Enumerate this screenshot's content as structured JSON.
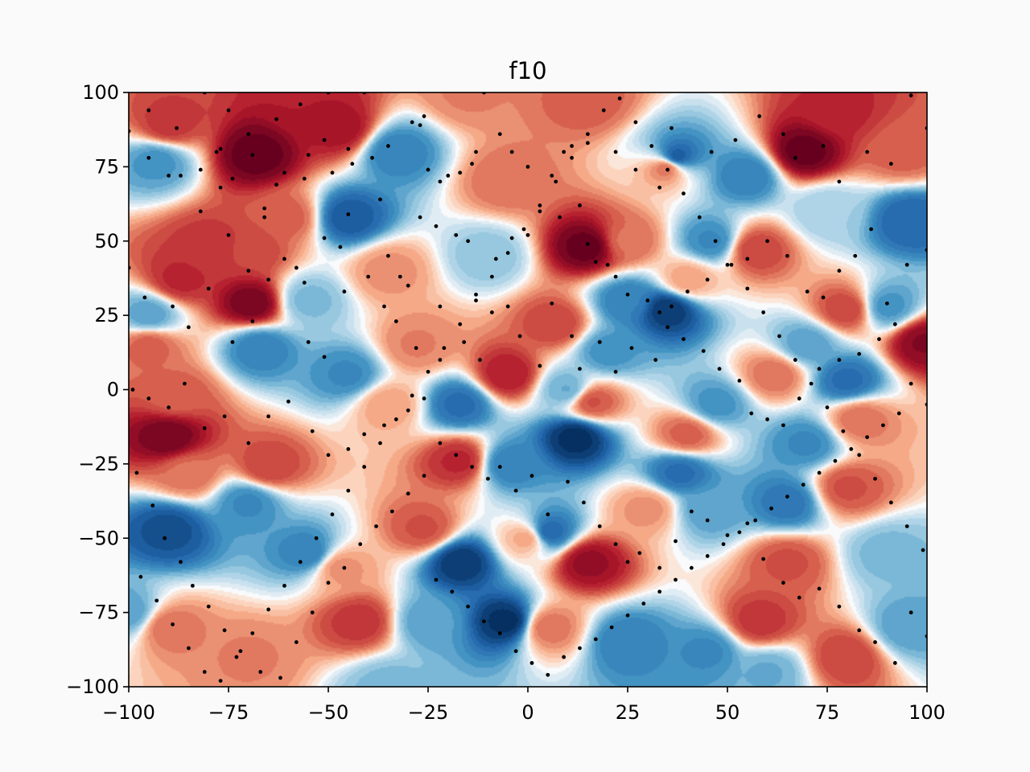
{
  "chart_data": {
    "type": "contour_scatter",
    "title": "f10",
    "xlabel": "",
    "ylabel": "",
    "xlim": [
      -100,
      100
    ],
    "ylim": [
      -100,
      100
    ],
    "x_ticks": [
      -100,
      -75,
      -50,
      -25,
      0,
      25,
      50,
      75,
      100
    ],
    "y_ticks": [
      -100,
      -75,
      -50,
      -25,
      0,
      25,
      50,
      75,
      100
    ],
    "x_tick_labels": [
      "−100",
      "−75",
      "−50",
      "−25",
      "0",
      "25",
      "50",
      "75",
      "100"
    ],
    "y_tick_labels": [
      "−100",
      "−75",
      "−50",
      "−25",
      "0",
      "25",
      "50",
      "75",
      "100"
    ],
    "grid": false,
    "colormap": "RdBu_r",
    "colors": {
      "low": "#08306b",
      "mid": "#f7f7f7",
      "high": "#67001f",
      "marker": "#000000",
      "background": "#fafafa"
    },
    "extrema": [
      {
        "x": -68,
        "y": 79,
        "v": 1.0
      },
      {
        "x": 69,
        "y": 80,
        "v": 1.0
      },
      {
        "x": 15,
        "y": 48,
        "v": 1.0
      },
      {
        "x": -69,
        "y": 29,
        "v": 0.95
      },
      {
        "x": -90,
        "y": -16,
        "v": 0.95
      },
      {
        "x": 99,
        "y": 16,
        "v": 0.9
      },
      {
        "x": 15,
        "y": -58,
        "v": 0.85
      },
      {
        "x": -47,
        "y": 88,
        "v": 0.8
      },
      {
        "x": -55,
        "y": 96,
        "v": 0.75
      },
      {
        "x": -90,
        "y": 89,
        "v": 0.65
      },
      {
        "x": -80,
        "y": 48,
        "v": 0.65
      },
      {
        "x": -87,
        "y": 37,
        "v": 0.7
      },
      {
        "x": -70,
        "y": 47,
        "v": 0.6
      },
      {
        "x": -60,
        "y": 58,
        "v": 0.5
      },
      {
        "x": -95,
        "y": 15,
        "v": 0.5
      },
      {
        "x": -88,
        "y": -2,
        "v": 0.5
      },
      {
        "x": -85,
        "y": -28,
        "v": 0.45
      },
      {
        "x": -65,
        "y": -26,
        "v": 0.6
      },
      {
        "x": -47,
        "y": -60,
        "v": 0.35
      },
      {
        "x": -26,
        "y": -47,
        "v": 0.55
      },
      {
        "x": -42,
        "y": -78,
        "v": 0.65
      },
      {
        "x": -90,
        "y": -80,
        "v": 0.45
      },
      {
        "x": -5,
        "y": 5,
        "v": 0.75
      },
      {
        "x": -17,
        "y": -24,
        "v": 0.7
      },
      {
        "x": 7,
        "y": 22,
        "v": 0.6
      },
      {
        "x": 16,
        "y": -4,
        "v": 0.55
      },
      {
        "x": 57,
        "y": 47,
        "v": 0.6
      },
      {
        "x": 80,
        "y": 27,
        "v": 0.6
      },
      {
        "x": 78,
        "y": 94,
        "v": 0.7
      },
      {
        "x": 94,
        "y": 80,
        "v": 0.5
      },
      {
        "x": 62,
        "y": 5,
        "v": 0.45
      },
      {
        "x": 83,
        "y": -10,
        "v": 0.45
      },
      {
        "x": 80,
        "y": -33,
        "v": 0.55
      },
      {
        "x": 65,
        "y": -58,
        "v": 0.55
      },
      {
        "x": 58,
        "y": -78,
        "v": 0.65
      },
      {
        "x": 80,
        "y": -90,
        "v": 0.6
      },
      {
        "x": 5,
        "y": -80,
        "v": 0.45
      },
      {
        "x": 35,
        "y": 75,
        "v": 0.5
      },
      {
        "x": 25,
        "y": 50,
        "v": 0.45
      },
      {
        "x": -35,
        "y": 40,
        "v": 0.35
      },
      {
        "x": -28,
        "y": 15,
        "v": 0.4
      },
      {
        "x": -5,
        "y": 70,
        "v": 0.45
      },
      {
        "x": -15,
        "y": 100,
        "v": 0.4
      },
      {
        "x": 15,
        "y": 97,
        "v": 0.5
      },
      {
        "x": 30,
        "y": -40,
        "v": 0.35
      },
      {
        "x": 40,
        "y": -15,
        "v": 0.5
      },
      {
        "x": 40,
        "y": 37,
        "v": 0.3
      },
      {
        "x": -70,
        "y": -90,
        "v": 0.4
      },
      {
        "x": -35,
        "y": -5,
        "v": 0.3
      },
      {
        "x": 0,
        "y": -50,
        "v": 0.3
      },
      {
        "x": -45,
        "y": 58,
        "v": -0.8
      },
      {
        "x": -33,
        "y": 80,
        "v": -0.6
      },
      {
        "x": -93,
        "y": 77,
        "v": -0.5
      },
      {
        "x": 37,
        "y": 78,
        "v": -0.85
      },
      {
        "x": 55,
        "y": 72,
        "v": -0.6
      },
      {
        "x": 96,
        "y": 57,
        "v": -0.75
      },
      {
        "x": 46,
        "y": 50,
        "v": -0.55
      },
      {
        "x": 35,
        "y": 27,
        "v": -0.95
      },
      {
        "x": 25,
        "y": 30,
        "v": -0.6
      },
      {
        "x": 20,
        "y": 13,
        "v": -0.5
      },
      {
        "x": 90,
        "y": 28,
        "v": -0.5
      },
      {
        "x": 70,
        "y": 15,
        "v": -0.45
      },
      {
        "x": -67,
        "y": 14,
        "v": -0.6
      },
      {
        "x": -45,
        "y": 5,
        "v": -0.55
      },
      {
        "x": -95,
        "y": 25,
        "v": -0.45
      },
      {
        "x": -17,
        "y": -5,
        "v": -0.7
      },
      {
        "x": 12,
        "y": -16,
        "v": -1.0
      },
      {
        "x": -5,
        "y": -25,
        "v": -0.6
      },
      {
        "x": 5,
        "y": -48,
        "v": -0.75
      },
      {
        "x": 80,
        "y": 3,
        "v": -0.7
      },
      {
        "x": 70,
        "y": -18,
        "v": -0.55
      },
      {
        "x": 47,
        "y": -5,
        "v": -0.5
      },
      {
        "x": 65,
        "y": -38,
        "v": -0.65
      },
      {
        "x": 45,
        "y": -40,
        "v": -0.45
      },
      {
        "x": 38,
        "y": -28,
        "v": -0.7
      },
      {
        "x": 90,
        "y": -55,
        "v": -0.35
      },
      {
        "x": -90,
        "y": -47,
        "v": -0.85
      },
      {
        "x": -70,
        "y": -38,
        "v": -0.55
      },
      {
        "x": -55,
        "y": -55,
        "v": -0.6
      },
      {
        "x": -17,
        "y": -58,
        "v": -0.95
      },
      {
        "x": -5,
        "y": -78,
        "v": -1.0
      },
      {
        "x": 25,
        "y": -85,
        "v": -0.6
      },
      {
        "x": 45,
        "y": -88,
        "v": -0.55
      },
      {
        "x": -25,
        "y": -78,
        "v": -0.45
      },
      {
        "x": -35,
        "y": -100,
        "v": -0.35
      },
      {
        "x": -100,
        "y": -75,
        "v": -0.45
      },
      {
        "x": 95,
        "y": -80,
        "v": -0.45
      },
      {
        "x": -55,
        "y": 30,
        "v": -0.35
      },
      {
        "x": 10,
        "y": 0,
        "v": -0.4
      },
      {
        "x": -10,
        "y": 45,
        "v": -0.3
      },
      {
        "x": 75,
        "y": 60,
        "v": -0.25
      },
      {
        "x": 60,
        "y": -95,
        "v": -0.4
      }
    ],
    "scatter_points": [
      [
        -100,
        87
      ],
      [
        -95,
        94
      ],
      [
        -88,
        88
      ],
      [
        -81,
        100
      ],
      [
        -75,
        94
      ],
      [
        -77,
        81
      ],
      [
        -70,
        86
      ],
      [
        -69,
        79
      ],
      [
        -63,
        91
      ],
      [
        -57,
        96
      ],
      [
        -55,
        79
      ],
      [
        -51,
        84
      ],
      [
        -50,
        100
      ],
      [
        -45,
        81
      ],
      [
        -41,
        100
      ],
      [
        -95,
        78
      ],
      [
        -87,
        72
      ],
      [
        -82,
        74
      ],
      [
        -78,
        80
      ],
      [
        -77,
        68
      ],
      [
        -74,
        71
      ],
      [
        -66,
        61
      ],
      [
        -63,
        69
      ],
      [
        -61,
        73
      ],
      [
        -56,
        71
      ],
      [
        -49,
        73
      ],
      [
        -44,
        76
      ],
      [
        -39,
        78
      ],
      [
        -35,
        82
      ],
      [
        -29,
        90
      ],
      [
        -27,
        89
      ],
      [
        -26,
        92
      ],
      [
        -25,
        74
      ],
      [
        -22,
        70
      ],
      [
        -20,
        72
      ],
      [
        -17,
        73
      ],
      [
        -14,
        76
      ],
      [
        -13,
        80
      ],
      [
        -11,
        100
      ],
      [
        -7,
        86
      ],
      [
        -4,
        80
      ],
      [
        0,
        75
      ],
      [
        6,
        72
      ],
      [
        9,
        80
      ],
      [
        11,
        82
      ],
      [
        15,
        83
      ],
      [
        22,
        80
      ],
      [
        27,
        74
      ],
      [
        33,
        68
      ],
      [
        36,
        88
      ],
      [
        46,
        80
      ],
      [
        52,
        84
      ],
      [
        58,
        92
      ],
      [
        64,
        86
      ],
      [
        67,
        78
      ],
      [
        74,
        82
      ],
      [
        78,
        70
      ],
      [
        85,
        80
      ],
      [
        91,
        76
      ],
      [
        96,
        99
      ],
      [
        100,
        88
      ],
      [
        -90,
        72
      ],
      [
        -82,
        60
      ],
      [
        -75,
        52
      ],
      [
        -70,
        40
      ],
      [
        -66,
        58
      ],
      [
        -61,
        44
      ],
      [
        -56,
        36
      ],
      [
        -51,
        51
      ],
      [
        -47,
        48
      ],
      [
        -45,
        59
      ],
      [
        -37,
        64
      ],
      [
        -35,
        45
      ],
      [
        -32,
        38
      ],
      [
        -30,
        35
      ],
      [
        -27,
        58
      ],
      [
        -23,
        55
      ],
      [
        -22,
        28
      ],
      [
        -18,
        52
      ],
      [
        -15,
        50
      ],
      [
        -13,
        32
      ],
      [
        -8,
        44
      ],
      [
        -4,
        51
      ],
      [
        0,
        52
      ],
      [
        3,
        60
      ],
      [
        8,
        58
      ],
      [
        13,
        62
      ],
      [
        15,
        49
      ],
      [
        17,
        43
      ],
      [
        20,
        42
      ],
      [
        22,
        38
      ],
      [
        25,
        32
      ],
      [
        30,
        30
      ],
      [
        33,
        26
      ],
      [
        36,
        28
      ],
      [
        40,
        33
      ],
      [
        45,
        37
      ],
      [
        50,
        42
      ],
      [
        55,
        44
      ],
      [
        60,
        50
      ],
      [
        65,
        45
      ],
      [
        70,
        33
      ],
      [
        74,
        31
      ],
      [
        78,
        40
      ],
      [
        82,
        45
      ],
      [
        86,
        54
      ],
      [
        90,
        29
      ],
      [
        95,
        42
      ],
      [
        100,
        47
      ],
      [
        -100,
        41
      ],
      [
        -96,
        31
      ],
      [
        -89,
        28
      ],
      [
        -85,
        21
      ],
      [
        -80,
        34
      ],
      [
        -74,
        16
      ],
      [
        -69,
        23
      ],
      [
        -65,
        37
      ],
      [
        -58,
        41
      ],
      [
        -55,
        16
      ],
      [
        -51,
        11
      ],
      [
        -46,
        33
      ],
      [
        -40,
        38
      ],
      [
        -36,
        28
      ],
      [
        -33,
        23
      ],
      [
        -28,
        14
      ],
      [
        -22,
        10
      ],
      [
        -16,
        16
      ],
      [
        -12,
        10
      ],
      [
        -9,
        26
      ],
      [
        -5,
        28
      ],
      [
        -2,
        18
      ],
      [
        3,
        8
      ],
      [
        6,
        29
      ],
      [
        11,
        18
      ],
      [
        13,
        7
      ],
      [
        18,
        16
      ],
      [
        22,
        6
      ],
      [
        26,
        14
      ],
      [
        32,
        10
      ],
      [
        35,
        21
      ],
      [
        39,
        17
      ],
      [
        44,
        13
      ],
      [
        48,
        7
      ],
      [
        53,
        3
      ],
      [
        56,
        -8
      ],
      [
        60,
        -10
      ],
      [
        64,
        -12
      ],
      [
        68,
        -3
      ],
      [
        73,
        7
      ],
      [
        78,
        10
      ],
      [
        83,
        12
      ],
      [
        88,
        17
      ],
      [
        92,
        22
      ],
      [
        96,
        2
      ],
      [
        100,
        -5
      ],
      [
        -99,
        0
      ],
      [
        -95,
        -3
      ],
      [
        -90,
        -6
      ],
      [
        -86,
        2
      ],
      [
        -81,
        -13
      ],
      [
        -76,
        -9
      ],
      [
        -70,
        -18
      ],
      [
        -65,
        -9
      ],
      [
        -60,
        -4
      ],
      [
        -54,
        -14
      ],
      [
        -50,
        -22
      ],
      [
        -45,
        -20
      ],
      [
        -41,
        -15
      ],
      [
        -36,
        -12
      ],
      [
        -30,
        -7
      ],
      [
        -26,
        -3
      ],
      [
        -22,
        -18
      ],
      [
        -18,
        -22
      ],
      [
        -14,
        -26
      ],
      [
        -10,
        -30
      ],
      [
        -7,
        -26
      ],
      [
        -3,
        -34
      ],
      [
        1,
        -29
      ],
      [
        5,
        -42
      ],
      [
        10,
        -31
      ],
      [
        14,
        -38
      ],
      [
        18,
        -46
      ],
      [
        22,
        -52
      ],
      [
        25,
        -58
      ],
      [
        28,
        -55
      ],
      [
        33,
        -60
      ],
      [
        37,
        -51
      ],
      [
        41,
        -41
      ],
      [
        45,
        -44
      ],
      [
        50,
        -49
      ],
      [
        55,
        -45
      ],
      [
        59,
        -57
      ],
      [
        64,
        -65
      ],
      [
        68,
        -70
      ],
      [
        73,
        -67
      ],
      [
        78,
        -73
      ],
      [
        83,
        -81
      ],
      [
        87,
        -85
      ],
      [
        92,
        -92
      ],
      [
        96,
        -75
      ],
      [
        100,
        -83
      ],
      [
        -98,
        -28
      ],
      [
        -94,
        -39
      ],
      [
        -91,
        -50
      ],
      [
        -87,
        -58
      ],
      [
        -84,
        -66
      ],
      [
        -80,
        -73
      ],
      [
        -76,
        -81
      ],
      [
        -72,
        -88
      ],
      [
        -67,
        -95
      ],
      [
        -62,
        -97
      ],
      [
        -58,
        -85
      ],
      [
        -54,
        -75
      ],
      [
        -50,
        -65
      ],
      [
        -46,
        -60
      ],
      [
        -42,
        -52
      ],
      [
        -38,
        -46
      ],
      [
        -34,
        -41
      ],
      [
        -30,
        -35
      ],
      [
        -26,
        -29
      ],
      [
        -23,
        -64
      ],
      [
        -19,
        -68
      ],
      [
        -15,
        -73
      ],
      [
        -11,
        -78
      ],
      [
        -7,
        -82
      ],
      [
        -3,
        -88
      ],
      [
        1,
        -92
      ],
      [
        5,
        -96
      ],
      [
        9,
        -90
      ],
      [
        13,
        -87
      ],
      [
        17,
        -84
      ],
      [
        21,
        -80
      ],
      [
        25,
        -76
      ],
      [
        29,
        -72
      ],
      [
        33,
        -68
      ],
      [
        37,
        -64
      ],
      [
        41,
        -60
      ],
      [
        45,
        -56
      ],
      [
        49,
        -52
      ],
      [
        53,
        -48
      ],
      [
        57,
        -44
      ],
      [
        61,
        -40
      ],
      [
        65,
        -36
      ],
      [
        69,
        -32
      ],
      [
        73,
        -28
      ],
      [
        77,
        -24
      ],
      [
        81,
        -20
      ],
      [
        85,
        -16
      ],
      [
        89,
        -12
      ],
      [
        93,
        -8
      ],
      [
        -97,
        -63
      ],
      [
        -93,
        -71
      ],
      [
        -89,
        -79
      ],
      [
        -85,
        -87
      ],
      [
        -81,
        -95
      ],
      [
        -77,
        -98
      ],
      [
        -73,
        -90
      ],
      [
        -69,
        -82
      ],
      [
        -65,
        -74
      ],
      [
        -61,
        -66
      ],
      [
        -57,
        -58
      ],
      [
        -53,
        -50
      ],
      [
        -49,
        -42
      ],
      [
        -45,
        -34
      ],
      [
        -41,
        -26
      ],
      [
        -37,
        -18
      ],
      [
        -33,
        -10
      ],
      [
        -29,
        -2
      ],
      [
        -25,
        6
      ],
      [
        -21,
        14
      ],
      [
        -17,
        22
      ],
      [
        -13,
        30
      ],
      [
        -9,
        38
      ],
      [
        -5,
        46
      ],
      [
        -1,
        54
      ],
      [
        3,
        62
      ],
      [
        7,
        70
      ],
      [
        11,
        78
      ],
      [
        15,
        86
      ],
      [
        19,
        94
      ],
      [
        23,
        98
      ],
      [
        27,
        90
      ],
      [
        31,
        82
      ],
      [
        35,
        74
      ],
      [
        39,
        66
      ],
      [
        43,
        58
      ],
      [
        47,
        50
      ],
      [
        51,
        42
      ],
      [
        55,
        34
      ],
      [
        59,
        26
      ],
      [
        63,
        18
      ],
      [
        67,
        10
      ],
      [
        71,
        2
      ],
      [
        75,
        -6
      ],
      [
        79,
        -14
      ],
      [
        83,
        -22
      ],
      [
        87,
        -30
      ],
      [
        91,
        -38
      ],
      [
        95,
        -46
      ],
      [
        99,
        -54
      ]
    ]
  }
}
